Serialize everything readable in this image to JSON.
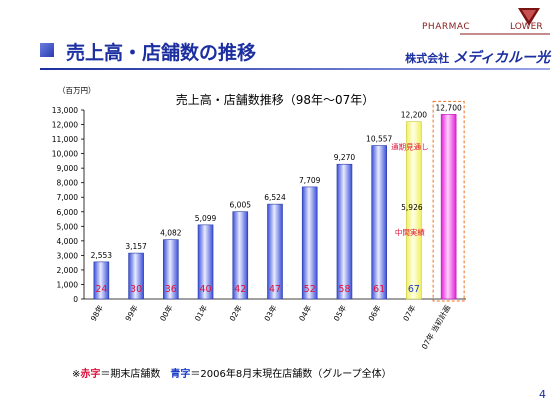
{
  "slide": {
    "title": "売上高・店舗数の推移",
    "company_prefix": "株式会社",
    "company_brand": "メディカルー光",
    "logo_text_left": "PHARMAC",
    "logo_text_right": "LOWER",
    "page_number": "4"
  },
  "footnote": {
    "prefix": "※",
    "red_label": "赤字",
    "red_desc": "＝期末店舗数　",
    "blue_label": "青字",
    "blue_desc": "＝2006年8月末現在店舗数（グループ全体）"
  },
  "colors": {
    "bar": "#5a6ee6",
    "bar_highlight": "#dfe4ff",
    "bar_plan": "#ef3ee8",
    "bar_midterm": "#ffff7a",
    "red_text": "#e0103a",
    "blue_text": "#1a3ac8",
    "title_blue": "#1c2fa0"
  },
  "chart_data": {
    "type": "bar",
    "title": "売上高・店舗数推移（98年～07年）",
    "unit_label": "（百万円）",
    "ylim": [
      0,
      13000
    ],
    "yticks": [
      0,
      1000,
      2000,
      3000,
      4000,
      5000,
      6000,
      7000,
      8000,
      9000,
      10000,
      11000,
      12000,
      13000
    ],
    "ytick_labels": [
      "0",
      "1,000",
      "2,000",
      "3,000",
      "4,000",
      "5,000",
      "6,000",
      "7,000",
      "8,000",
      "9,000",
      "10,000",
      "11,000",
      "12,000",
      "13,000"
    ],
    "categories": [
      "98年",
      "99年",
      "00年",
      "01年",
      "02年",
      "03年",
      "04年",
      "05年",
      "06年",
      "07年",
      "07年 当初計画"
    ],
    "values": [
      2553,
      3157,
      4082,
      5099,
      6005,
      6524,
      7709,
      9270,
      10557,
      12200,
      12700
    ],
    "value_labels": [
      "2,553",
      "3,157",
      "4,082",
      "5,099",
      "6,005",
      "6,524",
      "7,709",
      "9,270",
      "10,557",
      "12,200",
      "12,700"
    ],
    "store_counts": [
      "24",
      "30",
      "36",
      "40",
      "42",
      "47",
      "52",
      "58",
      "61",
      "67",
      ""
    ],
    "store_count_colors": [
      "red",
      "red",
      "red",
      "red",
      "red",
      "red",
      "red",
      "red",
      "red",
      "blue",
      ""
    ],
    "midterm_value": 5926,
    "midterm_value_label": "5,926",
    "annotation_forecast": "通期見通し",
    "annotation_midterm": "中間実績"
  }
}
